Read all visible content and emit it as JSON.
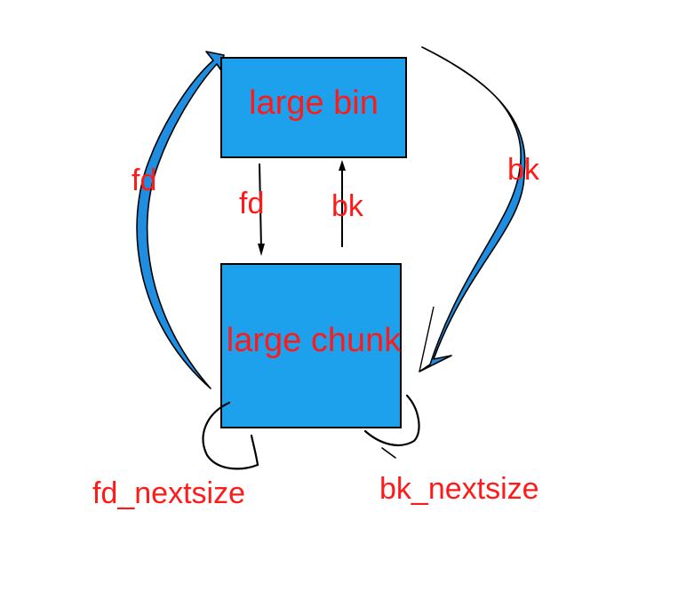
{
  "colors": {
    "box_fill": "#1da1ec",
    "box_stroke": "#000000",
    "arrow_fill": "#1f8ee0",
    "text": "#ff1a1a"
  },
  "nodes": {
    "large_bin": {
      "label": "large bin"
    },
    "large_chunk": {
      "label": "large chunk"
    }
  },
  "edges": {
    "outer_fd": {
      "label": "fd",
      "from": "large_chunk",
      "to": "large_bin"
    },
    "outer_bk": {
      "label": "bk",
      "from": "large_bin",
      "to": "large_chunk"
    },
    "inner_fd": {
      "label": "fd",
      "from": "large_bin",
      "to": "large_chunk"
    },
    "inner_bk": {
      "label": "bk",
      "from": "large_chunk",
      "to": "large_bin"
    },
    "fd_nextsize": {
      "label": "fd_nextsize",
      "from": "large_chunk",
      "to": "large_chunk"
    },
    "bk_nextsize": {
      "label": "bk_nextsize",
      "from": "large_chunk",
      "to": "large_chunk"
    }
  }
}
